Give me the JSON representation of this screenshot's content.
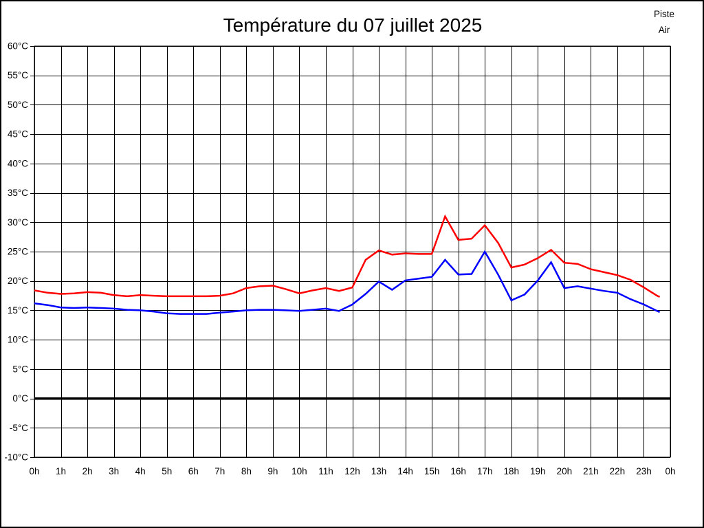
{
  "chart_data": {
    "type": "line",
    "title": "Température du 07 juillet 2025",
    "xlabel": "",
    "ylabel": "",
    "xlim": [
      0,
      24
    ],
    "ylim": [
      -10,
      60
    ],
    "y_tick_step": 5,
    "y_tick_suffix": "°C",
    "grid": true,
    "zero_line_value": 0,
    "legend_position": "top-right",
    "x_tick_labels": [
      "0h",
      "1h",
      "2h",
      "3h",
      "4h",
      "5h",
      "6h",
      "7h",
      "8h",
      "9h",
      "10h",
      "11h",
      "12h",
      "13h",
      "14h",
      "15h",
      "16h",
      "17h",
      "18h",
      "19h",
      "20h",
      "21h",
      "22h",
      "23h",
      "0h"
    ],
    "y_tick_labels": [
      "60°C",
      "55°C",
      "50°C",
      "45°C",
      "40°C",
      "35°C",
      "30°C",
      "25°C",
      "20°C",
      "15°C",
      "10°C",
      "5°C",
      "0°C",
      "-5°C",
      "-10°C"
    ],
    "colors": {
      "piste": "#ff0000",
      "air": "#0000ff",
      "grid": "#000000",
      "zero_line": "#000000",
      "frame": "#000000"
    },
    "series": [
      {
        "name": "Piste",
        "color": "#ff0000",
        "x": [
          0,
          0.5,
          1,
          1.5,
          2,
          2.5,
          3,
          3.5,
          4,
          4.5,
          5,
          5.5,
          6,
          6.5,
          7,
          7.5,
          8,
          8.5,
          9,
          9.5,
          10,
          10.5,
          11,
          11.5,
          12,
          12.5,
          13,
          13.5,
          14,
          14.5,
          15,
          15.5,
          16,
          16.5,
          17,
          17.5,
          18,
          18.5,
          19,
          19.5,
          20,
          20.5,
          21,
          21.5,
          22,
          22.5,
          23,
          23.5,
          23.6
        ],
        "y": [
          18.4,
          18.0,
          17.8,
          17.9,
          18.1,
          18.0,
          17.6,
          17.4,
          17.6,
          17.5,
          17.4,
          17.4,
          17.4,
          17.4,
          17.5,
          17.9,
          18.8,
          19.1,
          19.2,
          18.6,
          17.9,
          18.4,
          18.8,
          18.3,
          18.9,
          23.6,
          25.2,
          24.5,
          24.7,
          24.6,
          24.6,
          31.0,
          27.0,
          27.2,
          29.5,
          26.5,
          22.3,
          22.8,
          23.9,
          25.3,
          23.1,
          22.9,
          22.0,
          21.5,
          21.0,
          20.2,
          18.9,
          17.5,
          17.3
        ]
      },
      {
        "name": "Air",
        "color": "#0000ff",
        "x": [
          0,
          0.5,
          1,
          1.5,
          2,
          2.5,
          3,
          3.5,
          4,
          4.5,
          5,
          5.5,
          6,
          6.5,
          7,
          7.5,
          8,
          8.5,
          9,
          9.5,
          10,
          10.5,
          11,
          11.5,
          12,
          12.5,
          13,
          13.5,
          14,
          14.5,
          15,
          15.5,
          16,
          16.5,
          17,
          17.5,
          18,
          18.5,
          19,
          19.5,
          20,
          20.5,
          21,
          21.5,
          22,
          22.5,
          23,
          23.5,
          23.6
        ],
        "y": [
          16.2,
          15.9,
          15.5,
          15.4,
          15.5,
          15.4,
          15.3,
          15.1,
          15.0,
          14.8,
          14.5,
          14.4,
          14.4,
          14.4,
          14.6,
          14.8,
          15.0,
          15.1,
          15.1,
          15.0,
          14.9,
          15.1,
          15.3,
          14.9,
          16.0,
          17.8,
          19.9,
          18.5,
          20.1,
          20.4,
          20.7,
          23.6,
          21.1,
          21.2,
          25.0,
          21.1,
          16.7,
          17.7,
          20.1,
          23.2,
          18.8,
          19.1,
          18.7,
          18.3,
          18.0,
          16.9,
          16.0,
          14.9,
          14.7
        ]
      }
    ]
  }
}
